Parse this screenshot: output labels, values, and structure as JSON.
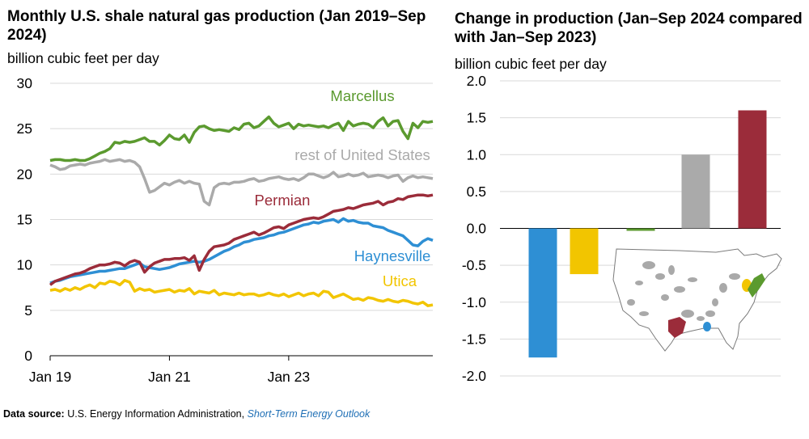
{
  "left": {
    "title": "Monthly U.S. shale natural gas production (Jan 2019–Sep 2024)",
    "subtitle": "billion cubic feet per day"
  },
  "right": {
    "title": "Change in production (Jan–Sep 2024 compared with Jan–Sep 2023)",
    "subtitle": "billion cubic feet per day"
  },
  "source": {
    "label": "Data source:",
    "org": "U.S. Energy Information Administration,",
    "publication": "Short-Term Energy Outlook"
  },
  "map": {
    "description_icon": "us-shale-plays-map"
  },
  "chart_data": [
    {
      "type": "line",
      "title": "Monthly U.S. shale natural gas production (Jan 2019–Sep 2024)",
      "ylabel": "billion cubic feet per day",
      "ylim": [
        0,
        30
      ],
      "yticks": [
        0,
        5,
        10,
        15,
        20,
        25,
        30
      ],
      "xticks": [
        "Jan 19",
        "Jan 21",
        "Jan 23"
      ],
      "x_start": "Jan 2019",
      "x_end": "Sep 2024",
      "grid": true,
      "series": [
        {
          "name": "Marcellus",
          "color": "#5b9a2f",
          "values": [
            21.5,
            21.6,
            21.6,
            21.5,
            21.5,
            21.6,
            21.5,
            21.5,
            21.7,
            22,
            22.3,
            22.5,
            22.8,
            23.5,
            23.4,
            23.6,
            23.5,
            23.6,
            23.8,
            24,
            23.6,
            23.6,
            23.2,
            23.7,
            24.3,
            23.9,
            23.8,
            24.3,
            23.5,
            24.6,
            25.2,
            25.3,
            25,
            24.8,
            24.9,
            24.8,
            24.7,
            25.1,
            24.9,
            25.5,
            25.6,
            25.1,
            25.3,
            25.8,
            26.3,
            25.6,
            25.2,
            25.4,
            25.6,
            25,
            25.5,
            25.3,
            25.4,
            25.3,
            25.2,
            25.3,
            25.1,
            25.4,
            25.6,
            24.8,
            25.8,
            25.3,
            25.5,
            25.6,
            25.5,
            25.1,
            25.8,
            26.2,
            25.3,
            25.8,
            25.9,
            24.7,
            23.9,
            25.6,
            25.1,
            25.8,
            25.7,
            25.8
          ]
        },
        {
          "name": "rest of United States",
          "color": "#aaaaaa",
          "values": [
            21,
            20.8,
            20.5,
            20.6,
            20.9,
            21,
            21.1,
            21,
            21.2,
            21.3,
            21.4,
            21.6,
            21.4,
            21.5,
            21.6,
            21.4,
            21.5,
            21.3,
            20.8,
            19.5,
            18,
            18.2,
            18.6,
            19,
            18.8,
            19.1,
            19.3,
            19,
            19.2,
            19,
            18.9,
            17,
            16.6,
            18.5,
            18.9,
            19,
            18.9,
            19.1,
            19.1,
            19.2,
            19.4,
            19.5,
            19.2,
            19.3,
            19.5,
            19.6,
            19.7,
            19.5,
            19.4,
            19.5,
            19.3,
            19.6,
            20,
            20,
            19.8,
            19.6,
            19.8,
            20.2,
            19.7,
            19.8,
            20,
            19.8,
            19.9,
            20.1,
            19.7,
            19.8,
            19.9,
            19.8,
            19.6,
            19.8,
            19.9,
            19.2,
            19.6,
            19.8,
            19.6,
            19.7,
            19.6,
            19.5
          ]
        },
        {
          "name": "Permian",
          "color": "#9b2c3a",
          "values": [
            7.8,
            8.2,
            8.4,
            8.6,
            8.8,
            9,
            9.1,
            9.3,
            9.6,
            9.8,
            10,
            10,
            10.1,
            10.3,
            10.2,
            9.9,
            10.3,
            10.5,
            10.3,
            9.2,
            9.8,
            10.2,
            10.4,
            10.6,
            10.6,
            10.7,
            10.7,
            10.8,
            10.5,
            11,
            9.4,
            10.6,
            11.5,
            12,
            12.1,
            12.2,
            12.4,
            12.8,
            13,
            13.2,
            13.4,
            13.6,
            13.3,
            13.5,
            13.8,
            14.1,
            14.2,
            14,
            14.4,
            14.6,
            14.8,
            15,
            15.1,
            15.2,
            15.1,
            15.3,
            15.6,
            15.9,
            16,
            16.1,
            16.3,
            16.2,
            16.4,
            16.6,
            16.7,
            16.8,
            17,
            16.6,
            16.9,
            17,
            17.3,
            17.2,
            17.5,
            17.6,
            17.7,
            17.7,
            17.6,
            17.7
          ]
        },
        {
          "name": "Haynesville",
          "color": "#2e8fd4",
          "values": [
            8,
            8.2,
            8.3,
            8.5,
            8.7,
            8.8,
            8.9,
            9,
            9.1,
            9.2,
            9.3,
            9.3,
            9.4,
            9.5,
            9.6,
            9.6,
            9.8,
            10,
            10.2,
            9.8,
            9.7,
            9.6,
            9.5,
            9.6,
            9.7,
            9.9,
            10.1,
            10.2,
            10.3,
            10.4,
            10.3,
            10.4,
            10.6,
            10.9,
            11.2,
            11.5,
            11.7,
            12,
            12.2,
            12.5,
            12.6,
            12.8,
            12.9,
            13,
            13.2,
            13.3,
            13.5,
            13.6,
            13.8,
            14,
            14.2,
            14.4,
            14.5,
            14.7,
            14.6,
            14.8,
            14.9,
            15,
            14.7,
            15.1,
            14.8,
            14.9,
            14.7,
            14.6,
            14.6,
            14.3,
            14.2,
            14.1,
            13.8,
            13.6,
            13.4,
            13.2,
            12.7,
            12.2,
            12.1,
            12.6,
            12.9,
            12.7
          ]
        },
        {
          "name": "Utica",
          "color": "#f2c500",
          "values": [
            7.2,
            7.3,
            7.1,
            7.4,
            7.2,
            7.5,
            7.3,
            7.6,
            7.8,
            7.5,
            8,
            7.9,
            8.2,
            8.1,
            7.8,
            8.3,
            8.1,
            7.1,
            7.4,
            7.2,
            7.3,
            7,
            7.1,
            7.2,
            7.3,
            7,
            7.2,
            7.1,
            7.4,
            6.8,
            7.1,
            7,
            6.9,
            7.2,
            6.7,
            6.9,
            6.8,
            6.7,
            6.9,
            6.7,
            6.8,
            6.8,
            6.6,
            6.7,
            6.9,
            6.7,
            6.6,
            6.8,
            6.5,
            6.7,
            6.9,
            6.6,
            6.8,
            6.9,
            6.6,
            7.1,
            7,
            6.4,
            6.6,
            6.8,
            6.5,
            6.2,
            6.3,
            6.1,
            6.4,
            6.3,
            6.1,
            6,
            6.2,
            6,
            5.9,
            6.1,
            6,
            5.8,
            5.7,
            5.9,
            5.5,
            5.6
          ]
        }
      ]
    },
    {
      "type": "bar",
      "title": "Change in production (Jan–Sep 2024 compared with Jan–Sep 2023)",
      "ylabel": "billion cubic feet per day",
      "ylim": [
        -2.0,
        2.0
      ],
      "yticks": [
        "2.0",
        "1.5",
        "1.0",
        "0.5",
        "0.0",
        "-0.5",
        "-1.0",
        "-1.5",
        "-2.0"
      ],
      "grid": true,
      "categories": [
        "Haynesville",
        "Utica",
        "Marcellus",
        "rest of United States",
        "Permian"
      ],
      "values": [
        -1.75,
        -0.62,
        -0.02,
        1.0,
        1.6
      ],
      "colors": [
        "#2e8fd4",
        "#f2c500",
        "#5b9a2f",
        "#aaaaaa",
        "#9b2c3a"
      ]
    }
  ]
}
